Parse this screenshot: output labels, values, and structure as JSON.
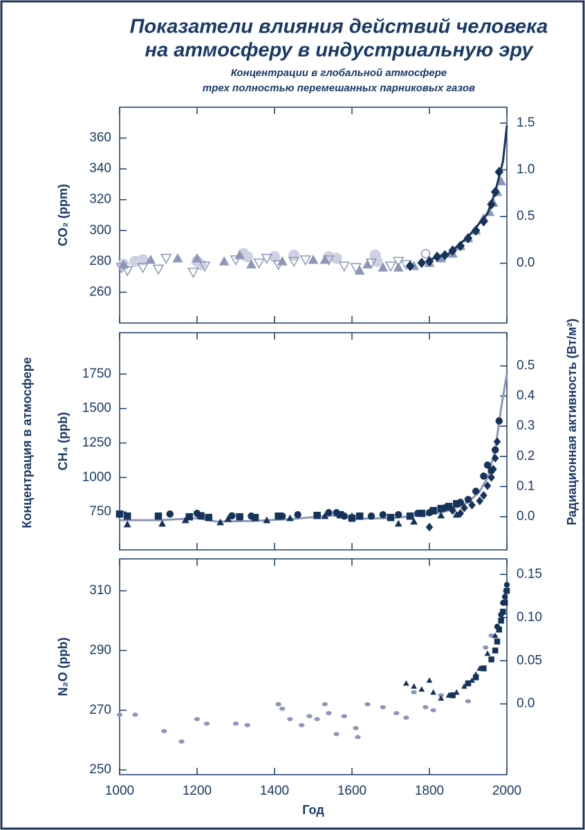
{
  "title": [
    "Показатели влияния действий человека",
    "на атмосферу в индустриальную эру"
  ],
  "subtitle": [
    "Концентрации в глобальной атмосфере",
    "трех полностью перемешанных парниковых газов"
  ],
  "y_label": "Концентрация в атмосфере",
  "y2_label": "Радиационная активность (Вт/м²)",
  "x_label": "Год",
  "chart_data": [
    {
      "type": "scatter",
      "y_label": "CO₂ (ppm)",
      "xlim": [
        1000,
        2000
      ],
      "xticks": [
        1000,
        1200,
        1400,
        1600,
        1800,
        2000
      ],
      "xtick_labels": false,
      "ylim": [
        240,
        380
      ],
      "yticks": [
        260,
        280,
        300,
        320,
        340,
        360
      ],
      "y2lim": [
        -0.64,
        1.67
      ],
      "y2ticks": [
        {
          "value": 0,
          "label": "0.0"
        },
        0.5,
        {
          "value": 1,
          "label": "1.0"
        },
        1.5
      ],
      "series": [
        {
          "marker": "circle",
          "filled": true,
          "marker_size": 8,
          "color": "#cdd1e3",
          "x": [
            1010,
            1040,
            1060,
            1200,
            1210,
            1320,
            1330,
            1400,
            1450,
            1540,
            1560,
            1660,
            1665
          ],
          "values": [
            278,
            280,
            281,
            280,
            278,
            285,
            283,
            283,
            284,
            283,
            282,
            284,
            280
          ]
        },
        {
          "marker": "triangle-down",
          "filled": false,
          "marker_size": 7,
          "color": "#8e97b7",
          "x": [
            1005,
            1020,
            1060,
            1100,
            1120,
            1190,
            1220,
            1300,
            1360,
            1380,
            1410,
            1450,
            1480,
            1540,
            1580,
            1610,
            1650,
            1700,
            1720,
            1740
          ],
          "values": [
            276,
            274,
            276,
            275,
            282,
            273,
            277,
            281,
            279,
            282,
            278,
            280,
            281,
            281,
            277,
            276,
            279,
            277,
            280,
            278
          ]
        },
        {
          "marker": "triangle",
          "filled": true,
          "marker_size": 7,
          "color": "#8e97b7",
          "x": [
            1010,
            1080,
            1150,
            1200,
            1270,
            1310,
            1340,
            1420,
            1500,
            1530,
            1620,
            1640,
            1680,
            1720,
            1760,
            1800,
            1830,
            1860,
            1880,
            1900,
            1920,
            1940,
            1955,
            1965,
            1975,
            1985
          ],
          "values": [
            278,
            281,
            282,
            282,
            280,
            284,
            278,
            280,
            281,
            281,
            274,
            278,
            276,
            276,
            277,
            279,
            282,
            285,
            290,
            295,
            300,
            308,
            312,
            318,
            325,
            332
          ]
        },
        {
          "marker": "circle",
          "filled": false,
          "marker_size": 6,
          "color": "#8e97b7",
          "x": [
            1790
          ],
          "values": [
            285
          ]
        },
        {
          "marker": "diamond",
          "filled": true,
          "marker_size": 6,
          "color": "#16335a",
          "x": [
            1750,
            1780,
            1800,
            1820,
            1840,
            1860,
            1880,
            1900,
            1920,
            1940,
            1960,
            1970,
            1980
          ],
          "values": [
            277,
            279,
            280,
            283,
            284,
            287,
            290,
            295,
            300,
            306,
            317,
            325,
            338
          ]
        },
        {
          "marker": "line",
          "color": "#16335a",
          "x": [
            1800,
            1850,
            1900,
            1930,
            1950,
            1970,
            1990,
            2000
          ],
          "values": [
            281,
            285,
            296,
            305,
            311,
            325,
            345,
            368
          ]
        }
      ]
    },
    {
      "type": "scatter",
      "y_label": "CH₄ (ppb)",
      "xlim": [
        1000,
        2000
      ],
      "xticks": [
        1000,
        1200,
        1400,
        1600,
        1800,
        2000
      ],
      "xtick_labels": false,
      "ylim": [
        475,
        2050
      ],
      "yticks": [
        750,
        1000,
        1250,
        1500,
        1750
      ],
      "y2lim": [
        -0.11,
        0.61
      ],
      "y2ticks": [
        {
          "value": 0,
          "label": "0.0"
        },
        0.1,
        0.2,
        0.3,
        0.4,
        0.5
      ],
      "series": [
        {
          "marker": "line",
          "color": "#8e97b7",
          "x": [
            1000,
            1100,
            1200,
            1250,
            1350,
            1450,
            1550,
            1600,
            1700,
            1800,
            1850,
            1900,
            1930,
            1950,
            1970,
            1985,
            2000
          ],
          "values": [
            690,
            690,
            705,
            680,
            685,
            700,
            725,
            700,
            705,
            730,
            760,
            820,
            900,
            1000,
            1200,
            1500,
            1750
          ]
        },
        {
          "marker": "circle",
          "filled": true,
          "marker_size": 5,
          "color": "#16335a",
          "x": [
            1130,
            1200,
            1290,
            1340,
            1420,
            1460,
            1540,
            1560,
            1580,
            1650,
            1680,
            1720,
            1770,
            1800,
            1840,
            1880,
            1900,
            1920,
            1940,
            1950,
            1960,
            1970,
            1980
          ],
          "values": [
            735,
            740,
            722,
            720,
            720,
            730,
            745,
            745,
            720,
            720,
            730,
            730,
            740,
            745,
            780,
            820,
            840,
            900,
            1010,
            1090,
            1050,
            1200,
            1410
          ]
        },
        {
          "marker": "square",
          "filled": true,
          "marker_size": 5,
          "color": "#16335a",
          "x": [
            1000,
            1020,
            1100,
            1180,
            1210,
            1230,
            1310,
            1350,
            1410,
            1510,
            1570,
            1600,
            1620,
            1700,
            1750,
            1780,
            1810,
            1830,
            1850,
            1870
          ],
          "values": [
            735,
            720,
            720,
            715,
            722,
            710,
            715,
            710,
            720,
            725,
            730,
            705,
            720,
            710,
            720,
            740,
            760,
            775,
            790,
            810
          ]
        },
        {
          "marker": "triangle",
          "filled": true,
          "marker_size": 5,
          "color": "#16335a",
          "x": [
            1020,
            1110,
            1170,
            1260,
            1280,
            1380,
            1440,
            1530,
            1600,
            1720,
            1760,
            1830,
            1870
          ],
          "values": [
            660,
            665,
            690,
            675,
            700,
            690,
            705,
            720,
            720,
            665,
            680,
            725,
            730
          ]
        },
        {
          "marker": "diamond",
          "filled": true,
          "marker_size": 5,
          "color": "#16335a",
          "x": [
            1800,
            1860,
            1880,
            1890,
            1910,
            1930,
            1940,
            1950,
            1960,
            1965,
            1970,
            1975
          ],
          "values": [
            640,
            760,
            740,
            780,
            800,
            830,
            870,
            940,
            1000,
            1060,
            1140,
            1260
          ]
        }
      ]
    },
    {
      "type": "scatter",
      "y_label": "N₂O (ppb)",
      "xlim": [
        1000,
        2000
      ],
      "xticks": [
        1000,
        1200,
        1400,
        1600,
        1800,
        2000
      ],
      "xtick_labels": true,
      "ylim": [
        248.4,
        320.7
      ],
      "yticks": [
        250,
        270,
        290,
        310
      ],
      "y2lim": [
        -0.082,
        0.168
      ],
      "y2ticks": [
        {
          "value": 0,
          "label": "0.0"
        },
        0.05,
        {
          "value": 0.1,
          "label": "0.10"
        },
        0.15
      ],
      "series": [
        {
          "marker": "ellipse",
          "filled": true,
          "marker_size": 4,
          "color": "#8e97b7",
          "x": [
            1000,
            1040,
            1115,
            1160,
            1200,
            1225,
            1300,
            1330,
            1410,
            1420,
            1440,
            1470,
            1490,
            1510,
            1530,
            1540,
            1560,
            1580,
            1610,
            1615,
            1640,
            1680,
            1715,
            1740,
            1760,
            1790,
            1810,
            1830,
            1900,
            1945,
            1960
          ],
          "values": [
            268.5,
            268.5,
            263,
            259.5,
            267,
            265.5,
            265.5,
            265,
            272,
            270.5,
            267,
            265,
            268,
            267,
            272,
            269,
            262,
            268,
            264,
            261,
            272,
            271,
            269,
            267.5,
            276,
            271,
            270,
            275,
            273,
            291,
            295
          ]
        },
        {
          "marker": "triangle",
          "filled": true,
          "marker_size": 4,
          "color": "#16335a",
          "x": [
            1740,
            1760,
            1780,
            1800,
            1810,
            1830,
            1850,
            1870,
            1890,
            1910,
            1920,
            1930,
            1950,
            1970
          ],
          "values": [
            279,
            278,
            277,
            280,
            276,
            274,
            275,
            276,
            278,
            280,
            282,
            284,
            289,
            295
          ]
        },
        {
          "marker": "square",
          "filled": true,
          "marker_size": 4,
          "color": "#16335a",
          "x": [
            1860,
            1900,
            1920,
            1940,
            1960,
            1970,
            1975,
            1980,
            1985,
            1990,
            1995,
            2000
          ],
          "values": [
            275,
            279,
            281,
            284,
            287,
            290,
            293,
            297,
            300,
            303,
            306,
            310
          ]
        },
        {
          "marker": "circle",
          "filled": true,
          "marker_size": 4,
          "color": "#16335a",
          "x": [
            1975,
            1985,
            1990,
            1995,
            1998,
            2000
          ],
          "values": [
            298,
            302,
            306,
            308,
            310,
            312
          ]
        }
      ]
    }
  ]
}
